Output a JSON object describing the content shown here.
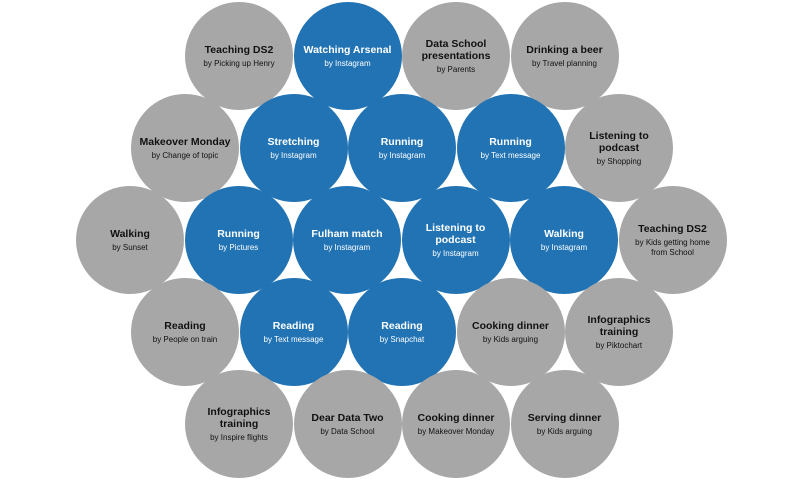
{
  "colors": {
    "interrupted": "#a7a7a7",
    "interrupted_text": "#111111",
    "social": "#2173b4",
    "social_text": "#ffffff"
  },
  "rows": [
    [
      {
        "activity": "Teaching DS2",
        "by": "by Picking up Henry",
        "kind": "gray"
      },
      {
        "activity": "Watching Arsenal",
        "by": "by Instagram",
        "kind": "blue"
      },
      {
        "activity": "Data School presentations",
        "by": "by Parents",
        "kind": "gray"
      },
      {
        "activity": "Drinking a beer",
        "by": "by Travel planning",
        "kind": "gray"
      }
    ],
    [
      {
        "activity": "Makeover Monday",
        "by": "by Change of topic",
        "kind": "gray"
      },
      {
        "activity": "Stretching",
        "by": "by Instagram",
        "kind": "blue"
      },
      {
        "activity": "Running",
        "by": "by Instagram",
        "kind": "blue"
      },
      {
        "activity": "Running",
        "by": "by Text message",
        "kind": "blue"
      },
      {
        "activity": "Listening to podcast",
        "by": "by Shopping",
        "kind": "gray"
      }
    ],
    [
      {
        "activity": "Walking",
        "by": "by Sunset",
        "kind": "gray"
      },
      {
        "activity": "Running",
        "by": "by Pictures",
        "kind": "blue"
      },
      {
        "activity": "Fulham match",
        "by": "by Instagram",
        "kind": "blue"
      },
      {
        "activity": "Listening to podcast",
        "by": "by Instagram",
        "kind": "blue"
      },
      {
        "activity": "Walking",
        "by": "by Instagram",
        "kind": "blue"
      },
      {
        "activity": "Teaching DS2",
        "by": "by Kids getting home from School",
        "kind": "gray"
      }
    ],
    [
      {
        "activity": "Reading",
        "by": "by People on train",
        "kind": "gray"
      },
      {
        "activity": "Reading",
        "by": "by Text message",
        "kind": "blue"
      },
      {
        "activity": "Reading",
        "by": "by Snapchat",
        "kind": "blue"
      },
      {
        "activity": "Cooking dinner",
        "by": "by Kids arguing",
        "kind": "gray"
      },
      {
        "activity": "Infographics training",
        "by": "by Piktochart",
        "kind": "gray"
      }
    ],
    [
      {
        "activity": "Infographics training",
        "by": "by Inspire flights",
        "kind": "gray"
      },
      {
        "activity": "Dear Data Two",
        "by": "by Data School",
        "kind": "gray"
      },
      {
        "activity": "Cooking dinner",
        "by": "by Makeover Monday",
        "kind": "gray"
      },
      {
        "activity": "Serving dinner",
        "by": "by Kids arguing",
        "kind": "gray"
      }
    ]
  ]
}
